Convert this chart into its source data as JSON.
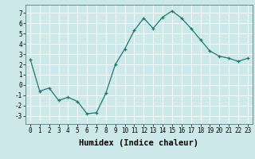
{
  "x": [
    0,
    1,
    2,
    3,
    4,
    5,
    6,
    7,
    8,
    9,
    10,
    11,
    12,
    13,
    14,
    15,
    16,
    17,
    18,
    19,
    20,
    21,
    22,
    23
  ],
  "y": [
    2.5,
    -0.6,
    -0.3,
    -1.5,
    -1.2,
    -1.6,
    -2.8,
    -2.7,
    -0.8,
    2.0,
    3.5,
    5.3,
    6.5,
    5.5,
    6.6,
    7.2,
    6.5,
    5.5,
    4.4,
    3.3,
    2.8,
    2.6,
    2.3,
    2.6
  ],
  "line_color": "#1a7a6e",
  "marker": "+",
  "bg_color": "#cce8e8",
  "grid_color": "#ffffff",
  "xlabel": "Humidex (Indice chaleur)",
  "ylim": [
    -3.8,
    7.8
  ],
  "xlim": [
    -0.5,
    23.5
  ],
  "yticks": [
    -3,
    -2,
    -1,
    0,
    1,
    2,
    3,
    4,
    5,
    6,
    7
  ],
  "xticks": [
    0,
    1,
    2,
    3,
    4,
    5,
    6,
    7,
    8,
    9,
    10,
    11,
    12,
    13,
    14,
    15,
    16,
    17,
    18,
    19,
    20,
    21,
    22,
    23
  ],
  "tick_fontsize": 5.5,
  "label_fontsize": 7.5
}
